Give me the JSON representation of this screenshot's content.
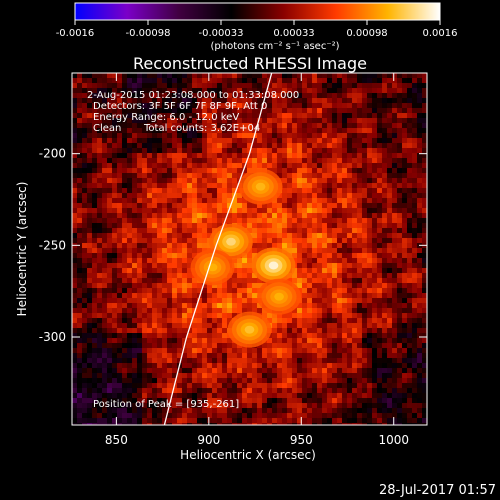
{
  "chart_data": {
    "type": "heatmap",
    "title": "Reconstructed RHESSI Image",
    "xlabel": "Heliocentric X (arcsec)",
    "ylabel": "Heliocentric Y (arcsec)",
    "xlim": [
      826,
      1018
    ],
    "ylim": [
      -348,
      -156
    ],
    "x_ticks": [
      850,
      900,
      950,
      1000
    ],
    "y_ticks": [
      -200,
      -250,
      -300
    ],
    "colorbar": {
      "min": -0.0016,
      "max": 0.0016,
      "ticks": [
        "-0.0016",
        "-0.00098",
        "-0.00033",
        "0.00033",
        "0.00098",
        "0.0016"
      ],
      "unit_label": "(photons cm⁻² s⁻¹ asec⁻²)",
      "colors": [
        "#0000ff",
        "#7b00c8",
        "#400040",
        "#000000",
        "#8a0000",
        "#ff3a00",
        "#ffb400",
        "#ffffff"
      ]
    },
    "annotations": {
      "time_range": "2-Aug-2015 01:23:08.000  to 01:33:08.000",
      "detectors": "Detectors: 3F 5F 6F 7F 8F 9F, Att 0",
      "energy_range": "Energy Range: 6.0 - 12.0 keV",
      "clean": "Clean",
      "total_counts": "Total counts: 3.62E+04",
      "peak_position": "Position of Peak = [935,-261]"
    },
    "peak": {
      "x": 935,
      "y": -261
    },
    "limb_curve": [
      [
        876,
        -348
      ],
      [
        888,
        -300
      ],
      [
        904,
        -250
      ],
      [
        922,
        -200
      ],
      [
        934,
        -156
      ]
    ],
    "sources": [
      {
        "x": 935,
        "y": -261,
        "value": 0.0016
      },
      {
        "x": 912,
        "y": -248,
        "value": 0.0013
      },
      {
        "x": 922,
        "y": -296,
        "value": 0.00105
      },
      {
        "x": 928,
        "y": -218,
        "value": 0.00095
      },
      {
        "x": 938,
        "y": -278,
        "value": 0.0009
      },
      {
        "x": 902,
        "y": -262,
        "value": 0.0009
      }
    ]
  },
  "footer": {
    "timestamp": "28-Jul-2017 01:57"
  }
}
